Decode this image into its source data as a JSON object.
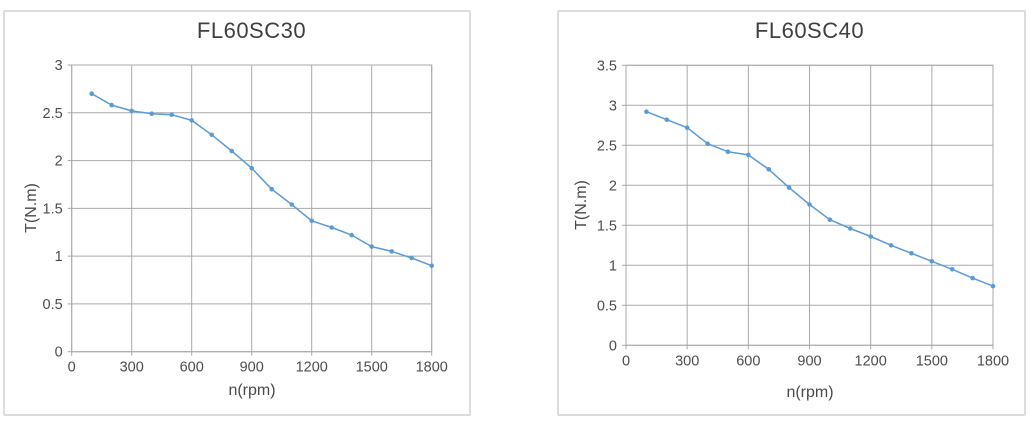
{
  "page": {
    "background": "#ffffff"
  },
  "styles": {
    "series_color": "#5B9BD5",
    "grid_color": "#a9a9a9",
    "axis_color": "#a9a9a9",
    "text_color": "#4d4d4d",
    "panel_border_color": "#dcdcdc"
  },
  "chart_data": [
    {
      "type": "line",
      "title": "FL60SC30",
      "xlabel": "n(rpm)",
      "ylabel": "T(N.m)",
      "legend": "none",
      "grid": true,
      "marker": "dot",
      "xlim": [
        0,
        1800
      ],
      "ylim": [
        0,
        3
      ],
      "x_ticks": [
        0,
        300,
        600,
        900,
        1200,
        1500,
        1800
      ],
      "y_ticks": [
        0,
        0.5,
        1,
        1.5,
        2,
        2.5,
        3
      ],
      "x": [
        100,
        200,
        300,
        400,
        500,
        600,
        700,
        800,
        900,
        1000,
        1100,
        1200,
        1300,
        1400,
        1500,
        1600,
        1700,
        1800
      ],
      "values": [
        2.7,
        2.58,
        2.52,
        2.49,
        2.48,
        2.42,
        2.27,
        2.1,
        1.92,
        1.7,
        1.54,
        1.37,
        1.3,
        1.22,
        1.1,
        1.05,
        0.98,
        0.9
      ]
    },
    {
      "type": "line",
      "title": "FL60SC40",
      "xlabel": "n(rpm)",
      "ylabel": "T(N.m)",
      "legend": "none",
      "grid": true,
      "marker": "dot",
      "xlim": [
        0,
        1800
      ],
      "ylim": [
        0,
        3.5
      ],
      "x_ticks": [
        0,
        300,
        600,
        900,
        1200,
        1500,
        1800
      ],
      "y_ticks": [
        0,
        0.5,
        1,
        1.5,
        2,
        2.5,
        3,
        3.5
      ],
      "x": [
        100,
        200,
        300,
        400,
        500,
        600,
        700,
        800,
        900,
        1000,
        1100,
        1200,
        1300,
        1400,
        1500,
        1600,
        1700,
        1800
      ],
      "values": [
        2.92,
        2.82,
        2.72,
        2.52,
        2.42,
        2.38,
        2.2,
        1.97,
        1.76,
        1.57,
        1.46,
        1.36,
        1.25,
        1.15,
        1.05,
        0.95,
        0.84,
        0.74
      ]
    }
  ]
}
